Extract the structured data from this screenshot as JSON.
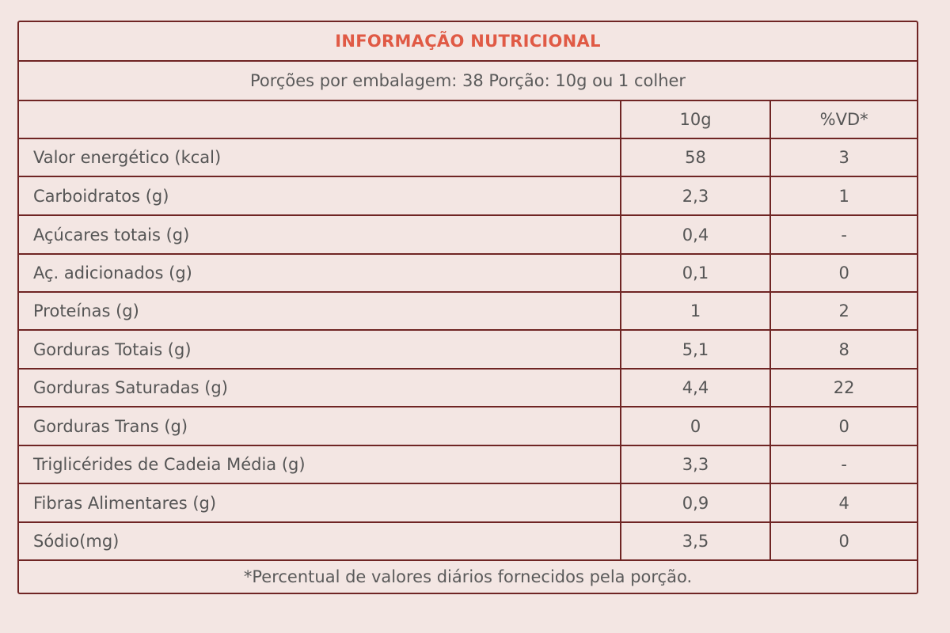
{
  "table": {
    "title": "INFORMAÇÃO NUTRICIONAL",
    "portions": "Porções por embalagem: 38 Porção: 10g ou 1 colher",
    "header": {
      "name": "",
      "value": "10g",
      "vd": "%VD*"
    },
    "rows": [
      {
        "name": "Valor energético (kcal)",
        "value": "58",
        "vd": "3"
      },
      {
        "name": "Carboidratos (g)",
        "value": "2,3",
        "vd": "1"
      },
      {
        "name": "Açúcares totais (g)",
        "value": "0,4",
        "vd": "-"
      },
      {
        "name": "Aç. adicionados (g)",
        "value": "0,1",
        "vd": "0"
      },
      {
        "name": "Proteínas (g)",
        "value": "1",
        "vd": "2"
      },
      {
        "name": "Gorduras Totais (g)",
        "value": "5,1",
        "vd": "8"
      },
      {
        "name": "Gorduras Saturadas (g)",
        "value": "4,4",
        "vd": "22"
      },
      {
        "name": "Gorduras Trans (g)",
        "value": "0",
        "vd": "0"
      },
      {
        "name": "Triglicérides de Cadeia Média (g)",
        "value": "3,3",
        "vd": "-"
      },
      {
        "name": "Fibras Alimentares (g)",
        "value": "0,9",
        "vd": "4"
      },
      {
        "name": "Sódio(mg)",
        "value": "3,5",
        "vd": "0"
      }
    ],
    "footnote": "*Percentual de valores diários fornecidos pela porção."
  },
  "colors": {
    "border": "#6f2524",
    "title": "#e05a45",
    "background": "#f3e6e3",
    "text": "#555555"
  }
}
